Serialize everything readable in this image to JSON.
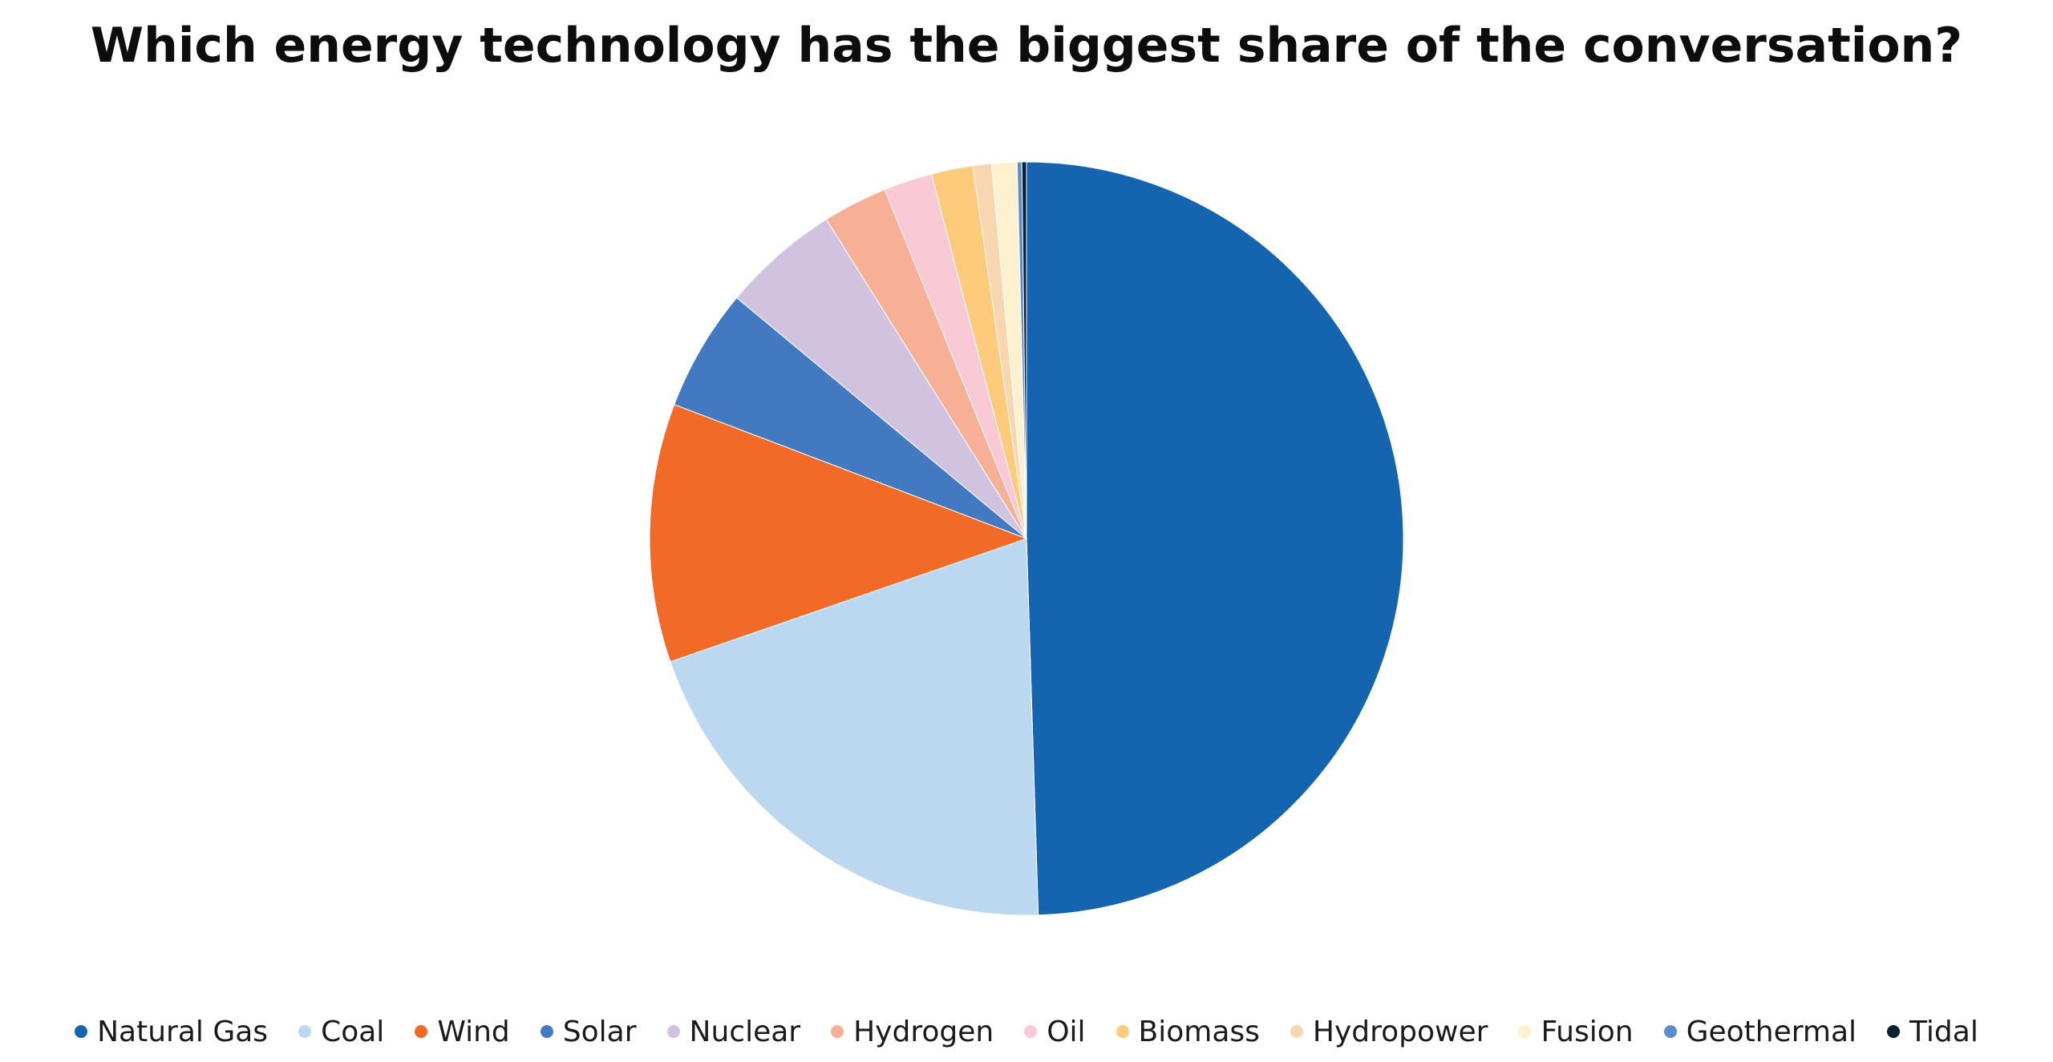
{
  "chart_data": {
    "type": "pie",
    "title": "Which energy technology has the biggest share of the conversation?",
    "start": "12 o'clock, clockwise",
    "legend_position": "bottom",
    "series": [
      {
        "name": "Natural Gas",
        "value": 50.0,
        "color": "#1464b0"
      },
      {
        "name": "Coal",
        "value": 20.4,
        "color": "#bcd8f0"
      },
      {
        "name": "Wind",
        "value": 11.2,
        "color": "#f26a27"
      },
      {
        "name": "Solar",
        "value": 5.3,
        "color": "#4279c0"
      },
      {
        "name": "Nuclear",
        "value": 5.1,
        "color": "#d1c3e0"
      },
      {
        "name": "Hydrogen",
        "value": 2.8,
        "color": "#f7b096"
      },
      {
        "name": "Oil",
        "value": 2.1,
        "color": "#f9cad6"
      },
      {
        "name": "Biomass",
        "value": 1.8,
        "color": "#fdcb7b"
      },
      {
        "name": "Hydropower",
        "value": 0.8,
        "color": "#f8d7b0"
      },
      {
        "name": "Fusion",
        "value": 1.1,
        "color": "#fdf1cf"
      },
      {
        "name": "Geothermal",
        "value": 0.2,
        "color": "#5d8ccc"
      },
      {
        "name": "Tidal",
        "value": 0.2,
        "color": "#0c1e35"
      }
    ]
  }
}
